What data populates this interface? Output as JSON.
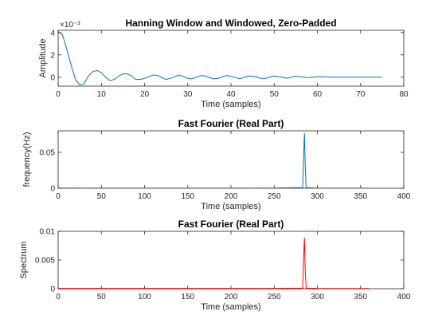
{
  "chart_data": [
    {
      "type": "line",
      "title": "Hanning Window and Windowed, Zero-Padded",
      "xlabel": "Time (samples)",
      "ylabel": "Amplitude",
      "exponent_label": "×10⁻³",
      "xlim": [
        0,
        80
      ],
      "ylim": [
        -0.0008,
        0.0042
      ],
      "xticks": [
        0,
        10,
        20,
        30,
        40,
        50,
        60,
        70,
        80
      ],
      "xtick_labels": [
        "0",
        "10",
        "20",
        "30",
        "40",
        "50",
        "60",
        "70",
        "80"
      ],
      "yticks": [
        0,
        0.002,
        0.004
      ],
      "ytick_labels": [
        "0",
        "2",
        "4"
      ],
      "color": "#0072BD",
      "series": [
        {
          "x": [
            0,
            1,
            2,
            3,
            4,
            5,
            6,
            7,
            8,
            9,
            10,
            11,
            12,
            13,
            14,
            15,
            16,
            17,
            18,
            19,
            20,
            22,
            23,
            25,
            26,
            28,
            30,
            31,
            33,
            34,
            36,
            37,
            39,
            41,
            42,
            44,
            45,
            47,
            48,
            50,
            52,
            53,
            55,
            56,
            58,
            59,
            61,
            63,
            65,
            70,
            75
          ],
          "y": [
            0.0041,
            0.0038,
            0.0025,
            0.0011,
            -0.0002,
            -0.0007,
            -0.0006,
            0.0001,
            0.0005,
            0.0006,
            0.0004,
            0.0,
            -0.0003,
            -0.0002,
            0.0001,
            0.0003,
            0.0003,
            0.0001,
            -0.0002,
            -0.0002,
            -0.0001,
            0.0002,
            0.00015,
            -0.0002,
            -0.0001,
            0.0002,
            -0.0001,
            -0.00015,
            0.00015,
            0.0001,
            -0.00015,
            -0.0001,
            0.00015,
            0.0,
            -0.00015,
            0.0001,
            0.0001,
            -0.0001,
            -0.0001,
            0.0001,
            0.0,
            -0.0001,
            0.0001,
            5e-05,
            -5e-05,
            0.0,
            5e-05,
            0.0,
            0.0,
            0.0,
            0.0
          ]
        }
      ]
    },
    {
      "type": "line",
      "title": "Fast Fourier (Real Part)",
      "xlabel": "Time (samples)",
      "ylabel": "frequency(Hz)",
      "xlim": [
        0,
        400
      ],
      "ylim": [
        0,
        0.08
      ],
      "xticks": [
        0,
        50,
        100,
        150,
        200,
        250,
        300,
        350,
        400
      ],
      "xtick_labels": [
        "0",
        "50",
        "100",
        "150",
        "200",
        "250",
        "300",
        "350",
        "400"
      ],
      "yticks": [
        0,
        0.05
      ],
      "ytick_labels": [
        "0",
        "0.05"
      ],
      "color": "#0072BD",
      "series": [
        {
          "x": [
            0,
            50,
            100,
            150,
            200,
            250,
            283,
            284,
            285,
            286,
            287,
            300,
            350,
            360
          ],
          "y": [
            0.0003,
            0.0002,
            0.0002,
            0.0002,
            0.0002,
            0.0003,
            0.001,
            0.04,
            0.077,
            0.03,
            0.001,
            0.0002,
            0.0001,
            0.0001
          ]
        }
      ]
    },
    {
      "type": "line",
      "title": "Fast Fourier (Real Part)",
      "xlabel": "Time (samples)",
      "ylabel": "Spectrum",
      "xlim": [
        0,
        400
      ],
      "ylim": [
        0,
        0.01
      ],
      "xticks": [
        0,
        50,
        100,
        150,
        200,
        250,
        300,
        350,
        400
      ],
      "xtick_labels": [
        "0",
        "50",
        "100",
        "150",
        "200",
        "250",
        "300",
        "350",
        "400"
      ],
      "yticks": [
        0,
        0.005,
        0.01
      ],
      "ytick_labels": [
        "0",
        "0.005",
        "0.01"
      ],
      "color": "#FF0000",
      "series": [
        {
          "x": [
            0,
            50,
            100,
            150,
            200,
            250,
            283,
            284,
            285,
            286,
            287,
            300,
            350,
            360
          ],
          "y": [
            5e-05,
            5e-05,
            5e-05,
            5e-05,
            5e-05,
            5e-05,
            0.0001,
            0.005,
            0.0089,
            0.003,
            0.0001,
            5e-05,
            3e-05,
            3e-05
          ]
        }
      ]
    }
  ]
}
